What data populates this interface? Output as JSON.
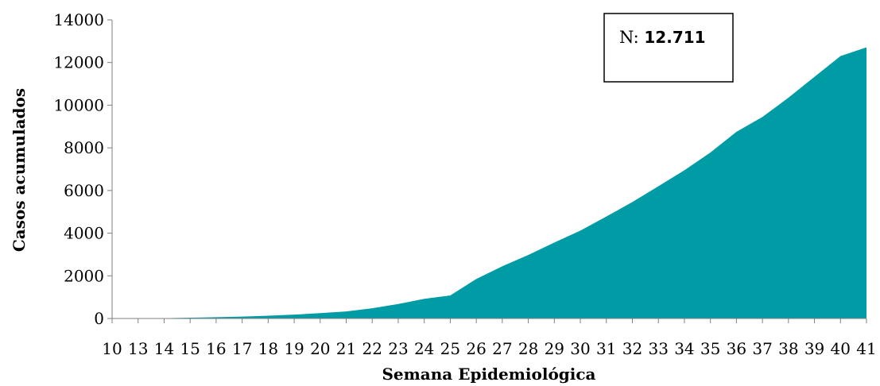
{
  "chart_data": {
    "type": "area",
    "categories": [
      "10",
      "13",
      "14",
      "15",
      "16",
      "17",
      "18",
      "19",
      "20",
      "21",
      "22",
      "23",
      "24",
      "25",
      "26",
      "27",
      "28",
      "29",
      "30",
      "31",
      "32",
      "33",
      "34",
      "35",
      "36",
      "37",
      "38",
      "39",
      "40",
      "41"
    ],
    "values": [
      0,
      5,
      15,
      35,
      60,
      90,
      130,
      180,
      250,
      330,
      480,
      680,
      920,
      1080,
      1850,
      2450,
      2980,
      3560,
      4120,
      4780,
      5460,
      6200,
      6950,
      7780,
      8750,
      9450,
      10350,
      11330,
      12300,
      12711
    ],
    "xlabel": "Semana Epidemiológica",
    "ylabel": "Casos acumulados",
    "ylim": [
      0,
      14000
    ],
    "yticks": [
      0,
      2000,
      4000,
      6000,
      8000,
      10000,
      12000,
      14000
    ],
    "grid": false,
    "area_color": "#009ca6",
    "annotation": {
      "label": "N: ",
      "value": "12.711"
    }
  }
}
